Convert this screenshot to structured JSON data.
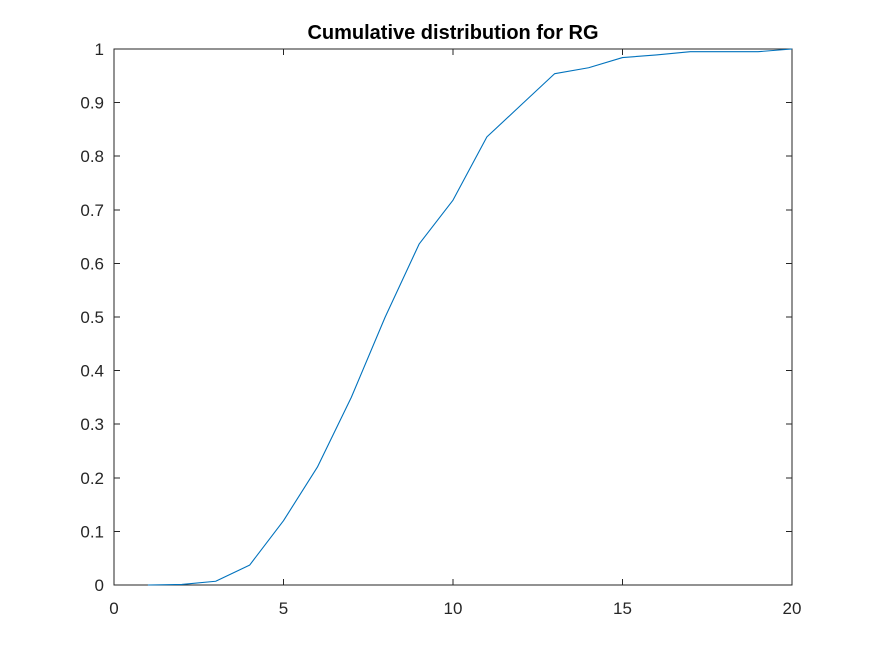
{
  "chart_data": {
    "type": "line",
    "title": "Cumulative distribution for RG",
    "xlabel": "",
    "ylabel": "",
    "xlim": [
      0,
      20
    ],
    "ylim": [
      0,
      1
    ],
    "xticks": [
      0,
      5,
      10,
      15,
      20
    ],
    "xtick_labels": [
      "0",
      "5",
      "10",
      "15",
      "20"
    ],
    "yticks": [
      0,
      0.1,
      0.2,
      0.3,
      0.4,
      0.5,
      0.6,
      0.7,
      0.8,
      0.9,
      1
    ],
    "ytick_labels": [
      "0",
      "0.1",
      "0.2",
      "0.3",
      "0.4",
      "0.5",
      "0.6",
      "0.7",
      "0.8",
      "0.9",
      "1"
    ],
    "grid": false,
    "legend": "none",
    "series": [
      {
        "color": "#0072BD",
        "x": [
          1,
          2,
          3,
          4,
          5,
          6,
          7,
          8,
          9,
          10,
          11,
          12,
          13,
          14,
          15,
          16,
          17,
          18,
          19,
          20
        ],
        "y": [
          0.0,
          0.001,
          0.007,
          0.037,
          0.12,
          0.22,
          0.35,
          0.5,
          0.636,
          0.718,
          0.836,
          0.895,
          0.954,
          0.965,
          0.984,
          0.989,
          0.995,
          0.995,
          0.995,
          1.0
        ]
      }
    ]
  },
  "colors": {
    "axis": "#262626",
    "line": "#0072BD",
    "background": "#ffffff"
  }
}
